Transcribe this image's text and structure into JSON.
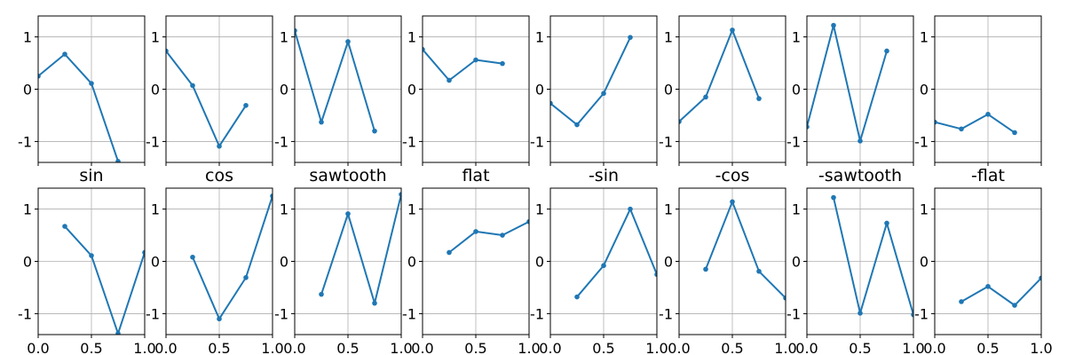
{
  "colors": {
    "series": "#1f77b4",
    "grid": "#b0b0b0",
    "axis": "#000000"
  },
  "chart_data": [
    {
      "type": "line",
      "title": "",
      "grid": true,
      "xlim": [
        0,
        1
      ],
      "ylim": [
        -1.4,
        1.4
      ],
      "yticks": [
        "-1",
        "0",
        "1"
      ],
      "xticks": [],
      "series": [
        {
          "x": [
            0,
            0.25,
            0.5,
            0.75
          ],
          "y": [
            0.25,
            0.67,
            0.11,
            -1.38
          ]
        }
      ]
    },
    {
      "type": "line",
      "title": "",
      "grid": true,
      "xlim": [
        0,
        1
      ],
      "ylim": [
        -1.4,
        1.4
      ],
      "yticks": [
        "-1",
        "0",
        "1"
      ],
      "xticks": [],
      "series": [
        {
          "x": [
            0,
            0.25,
            0.5,
            0.75
          ],
          "y": [
            0.73,
            0.07,
            -1.09,
            -0.31
          ]
        }
      ]
    },
    {
      "type": "line",
      "title": "",
      "grid": true,
      "xlim": [
        0,
        1
      ],
      "ylim": [
        -1.4,
        1.4
      ],
      "yticks": [
        "-1",
        "0",
        "1"
      ],
      "xticks": [],
      "series": [
        {
          "x": [
            0,
            0.25,
            0.5,
            0.75
          ],
          "y": [
            1.12,
            -0.63,
            0.91,
            -0.8
          ]
        }
      ]
    },
    {
      "type": "line",
      "title": "",
      "grid": true,
      "xlim": [
        0,
        1
      ],
      "ylim": [
        -1.4,
        1.4
      ],
      "yticks": [
        "-1",
        "0",
        "1"
      ],
      "xticks": [],
      "series": [
        {
          "x": [
            0,
            0.25,
            0.5,
            0.75
          ],
          "y": [
            0.76,
            0.17,
            0.56,
            0.49
          ]
        }
      ]
    },
    {
      "type": "line",
      "title": "",
      "grid": true,
      "xlim": [
        0,
        1
      ],
      "ylim": [
        -1.4,
        1.4
      ],
      "yticks": [
        "-1",
        "0",
        "1"
      ],
      "xticks": [],
      "series": [
        {
          "x": [
            0,
            0.25,
            0.5,
            0.75
          ],
          "y": [
            -0.27,
            -0.68,
            -0.08,
            0.99
          ]
        }
      ]
    },
    {
      "type": "line",
      "title": "",
      "grid": true,
      "xlim": [
        0,
        1
      ],
      "ylim": [
        -1.4,
        1.4
      ],
      "yticks": [
        "-1",
        "0",
        "1"
      ],
      "xticks": [],
      "series": [
        {
          "x": [
            0,
            0.25,
            0.5,
            0.75
          ],
          "y": [
            -0.62,
            -0.15,
            1.13,
            -0.18
          ]
        }
      ]
    },
    {
      "type": "line",
      "title": "",
      "grid": true,
      "xlim": [
        0,
        1
      ],
      "ylim": [
        -1.4,
        1.4
      ],
      "yticks": [
        "-1",
        "0",
        "1"
      ],
      "xticks": [],
      "series": [
        {
          "x": [
            0,
            0.25,
            0.5,
            0.75
          ],
          "y": [
            -0.72,
            1.22,
            -0.99,
            0.73
          ]
        }
      ]
    },
    {
      "type": "line",
      "title": "",
      "grid": true,
      "xlim": [
        0,
        1
      ],
      "ylim": [
        -1.4,
        1.4
      ],
      "yticks": [
        "-1",
        "0",
        "1"
      ],
      "xticks": [],
      "series": [
        {
          "x": [
            0,
            0.25,
            0.5,
            0.75
          ],
          "y": [
            -0.63,
            -0.76,
            -0.48,
            -0.83
          ]
        }
      ]
    },
    {
      "type": "line",
      "title": "sin",
      "grid": true,
      "xlim": [
        0,
        1
      ],
      "ylim": [
        -1.4,
        1.4
      ],
      "yticks": [
        "-1",
        "0",
        "1"
      ],
      "xticks": [
        "0.0",
        "0.5",
        "1.0"
      ],
      "series": [
        {
          "x": [
            0.25,
            0.5,
            0.75,
            1.0
          ],
          "y": [
            0.67,
            0.11,
            -1.38,
            0.17
          ]
        }
      ]
    },
    {
      "type": "line",
      "title": "cos",
      "grid": true,
      "xlim": [
        0,
        1
      ],
      "ylim": [
        -1.4,
        1.4
      ],
      "yticks": [
        "-1",
        "0",
        "1"
      ],
      "xticks": [
        "0.0",
        "0.5",
        "1.0"
      ],
      "series": [
        {
          "x": [
            0.25,
            0.5,
            0.75,
            1.0
          ],
          "y": [
            0.08,
            -1.1,
            -0.31,
            1.25
          ]
        }
      ]
    },
    {
      "type": "line",
      "title": "sawtooth",
      "grid": true,
      "xlim": [
        0,
        1
      ],
      "ylim": [
        -1.4,
        1.4
      ],
      "yticks": [
        "-1",
        "0",
        "1"
      ],
      "xticks": [
        "0.0",
        "0.5",
        "1.0"
      ],
      "series": [
        {
          "x": [
            0.25,
            0.5,
            0.75,
            1.0
          ],
          "y": [
            -0.63,
            0.91,
            -0.8,
            1.28
          ]
        }
      ]
    },
    {
      "type": "line",
      "title": "flat",
      "grid": true,
      "xlim": [
        0,
        1
      ],
      "ylim": [
        -1.4,
        1.4
      ],
      "yticks": [
        "-1",
        "0",
        "1"
      ],
      "xticks": [
        "0.0",
        "0.5",
        "1.0"
      ],
      "series": [
        {
          "x": [
            0.25,
            0.5,
            0.75,
            1.0
          ],
          "y": [
            0.17,
            0.57,
            0.5,
            0.76
          ]
        }
      ]
    },
    {
      "type": "line",
      "title": "-sin",
      "grid": true,
      "xlim": [
        0,
        1
      ],
      "ylim": [
        -1.4,
        1.4
      ],
      "yticks": [
        "-1",
        "0",
        "1"
      ],
      "xticks": [
        "0.0",
        "0.5",
        "1.0"
      ],
      "series": [
        {
          "x": [
            0.25,
            0.5,
            0.75,
            1.0
          ],
          "y": [
            -0.68,
            -0.08,
            1.0,
            -0.25
          ]
        }
      ]
    },
    {
      "type": "line",
      "title": "-cos",
      "grid": true,
      "xlim": [
        0,
        1
      ],
      "ylim": [
        -1.4,
        1.4
      ],
      "yticks": [
        "-1",
        "0",
        "1"
      ],
      "xticks": [
        "0.0",
        "0.5",
        "1.0"
      ],
      "series": [
        {
          "x": [
            0.25,
            0.5,
            0.75,
            1.0
          ],
          "y": [
            -0.15,
            1.14,
            -0.19,
            -0.7
          ]
        }
      ]
    },
    {
      "type": "line",
      "title": "-sawtooth",
      "grid": true,
      "xlim": [
        0,
        1
      ],
      "ylim": [
        -1.4,
        1.4
      ],
      "yticks": [
        "-1",
        "0",
        "1"
      ],
      "xticks": [
        "0.0",
        "0.5",
        "1.0"
      ],
      "series": [
        {
          "x": [
            0.25,
            0.5,
            0.75,
            1.0
          ],
          "y": [
            1.22,
            -0.99,
            0.73,
            -1.02
          ]
        }
      ]
    },
    {
      "type": "line",
      "title": "-flat",
      "grid": true,
      "xlim": [
        0,
        1
      ],
      "ylim": [
        -1.4,
        1.4
      ],
      "yticks": [
        "-1",
        "0",
        "1"
      ],
      "xticks": [
        "0.0",
        "0.5",
        "1.0"
      ],
      "series": [
        {
          "x": [
            0.25,
            0.5,
            0.75,
            1.0
          ],
          "y": [
            -0.77,
            -0.48,
            -0.84,
            -0.32
          ]
        }
      ]
    }
  ]
}
